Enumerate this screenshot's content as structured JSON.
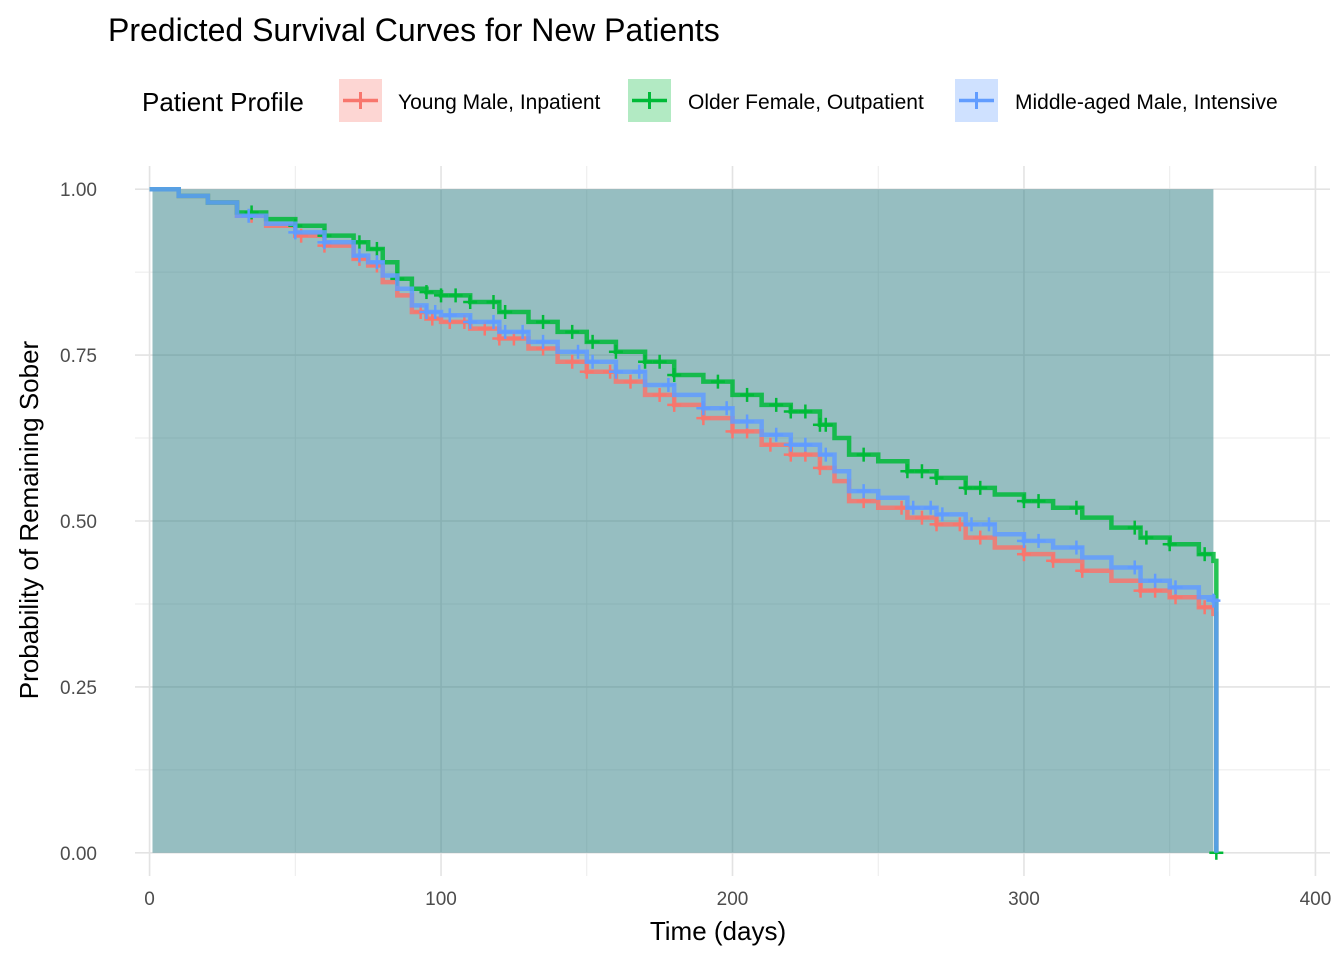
{
  "chart_data": {
    "type": "line",
    "step": true,
    "title": "Predicted Survival Curves for New Patients",
    "xlabel": "Time (days)",
    "ylabel": "Probability of Remaining Sober",
    "xlim": [
      -5,
      405
    ],
    "ylim": [
      -0.035,
      1.035
    ],
    "x_ticks": [
      0,
      100,
      200,
      300,
      400
    ],
    "x_tick_labels": [
      "0",
      "100",
      "200",
      "300",
      "400"
    ],
    "y_ticks": [
      0,
      0.25,
      0.5,
      0.75,
      1
    ],
    "y_tick_labels": [
      "0.00",
      "0.25",
      "0.50",
      "0.75",
      "1.00"
    ],
    "grid": true,
    "legend": {
      "title": "Patient Profile",
      "position": "top",
      "entries": [
        "Young Male, Inpatient",
        "Older Female, Outpatient",
        "Middle-aged Male, Intensive"
      ]
    },
    "band": {
      "x_start": 1,
      "x_end": 365,
      "y_low": 0,
      "y_high": 1,
      "color": "#2E7D84"
    },
    "series": [
      {
        "name": "Young Male, Inpatient",
        "color": "#F8766D",
        "x": [
          0,
          10,
          20,
          30,
          40,
          50,
          60,
          70,
          75,
          80,
          85,
          90,
          95,
          100,
          110,
          120,
          130,
          140,
          150,
          160,
          170,
          180,
          190,
          200,
          210,
          220,
          230,
          235,
          240,
          250,
          260,
          270,
          280,
          290,
          300,
          310,
          320,
          330,
          340,
          350,
          360,
          365,
          366
        ],
        "y": [
          1.0,
          0.99,
          0.98,
          0.96,
          0.945,
          0.93,
          0.915,
          0.895,
          0.885,
          0.86,
          0.84,
          0.815,
          0.805,
          0.8,
          0.79,
          0.775,
          0.76,
          0.74,
          0.725,
          0.71,
          0.69,
          0.675,
          0.655,
          0.635,
          0.615,
          0.6,
          0.58,
          0.56,
          0.53,
          0.52,
          0.505,
          0.495,
          0.475,
          0.46,
          0.45,
          0.44,
          0.425,
          0.41,
          0.395,
          0.385,
          0.37,
          0.36,
          0.0
        ],
        "censor_x": [
          35,
          52,
          60,
          72,
          78,
          93,
          97,
          103,
          108,
          115,
          120,
          125,
          135,
          145,
          150,
          158,
          165,
          175,
          180,
          190,
          200,
          205,
          213,
          220,
          225,
          230,
          245,
          258,
          265,
          270,
          278,
          285,
          300,
          310,
          320,
          340,
          345,
          352,
          362
        ]
      },
      {
        "name": "Older Female, Outpatient",
        "color": "#00BA38",
        "x": [
          0,
          10,
          20,
          30,
          40,
          50,
          60,
          70,
          75,
          80,
          85,
          90,
          95,
          100,
          110,
          120,
          130,
          140,
          150,
          160,
          170,
          180,
          190,
          200,
          210,
          220,
          230,
          235,
          240,
          250,
          260,
          270,
          280,
          290,
          300,
          310,
          320,
          330,
          340,
          350,
          360,
          365,
          366
        ],
        "y": [
          1.0,
          0.99,
          0.98,
          0.965,
          0.955,
          0.945,
          0.93,
          0.92,
          0.91,
          0.89,
          0.865,
          0.85,
          0.845,
          0.84,
          0.83,
          0.815,
          0.8,
          0.785,
          0.77,
          0.755,
          0.74,
          0.72,
          0.71,
          0.69,
          0.675,
          0.665,
          0.645,
          0.625,
          0.6,
          0.59,
          0.575,
          0.565,
          0.55,
          0.54,
          0.53,
          0.52,
          0.505,
          0.49,
          0.475,
          0.465,
          0.45,
          0.44,
          0.0
        ],
        "censor_x": [
          35,
          50,
          60,
          72,
          78,
          85,
          95,
          100,
          105,
          110,
          118,
          122,
          135,
          145,
          152,
          160,
          170,
          175,
          180,
          195,
          205,
          215,
          220,
          225,
          230,
          232,
          245,
          260,
          265,
          270,
          280,
          285,
          300,
          305,
          318,
          338,
          342,
          350,
          362,
          366
        ]
      },
      {
        "name": "Middle-aged Male, Intensive",
        "color": "#619CFF",
        "x": [
          0,
          10,
          20,
          30,
          40,
          50,
          60,
          70,
          75,
          80,
          85,
          90,
          95,
          100,
          110,
          120,
          130,
          140,
          150,
          160,
          170,
          180,
          190,
          200,
          210,
          220,
          230,
          235,
          240,
          250,
          260,
          270,
          280,
          290,
          300,
          310,
          320,
          330,
          340,
          350,
          360,
          365,
          366
        ],
        "y": [
          1.0,
          0.99,
          0.98,
          0.96,
          0.948,
          0.935,
          0.92,
          0.9,
          0.89,
          0.87,
          0.85,
          0.825,
          0.815,
          0.81,
          0.8,
          0.785,
          0.77,
          0.755,
          0.74,
          0.725,
          0.705,
          0.69,
          0.67,
          0.65,
          0.63,
          0.615,
          0.6,
          0.575,
          0.545,
          0.535,
          0.52,
          0.51,
          0.495,
          0.48,
          0.47,
          0.46,
          0.445,
          0.43,
          0.41,
          0.4,
          0.385,
          0.38,
          0.0
        ],
        "censor_x": [
          34,
          50,
          60,
          72,
          78,
          95,
          98,
          103,
          110,
          118,
          122,
          128,
          135,
          147,
          152,
          160,
          168,
          178,
          190,
          198,
          205,
          215,
          220,
          225,
          232,
          245,
          262,
          268,
          272,
          282,
          288,
          300,
          305,
          318,
          338,
          345,
          352,
          365
        ]
      }
    ]
  }
}
